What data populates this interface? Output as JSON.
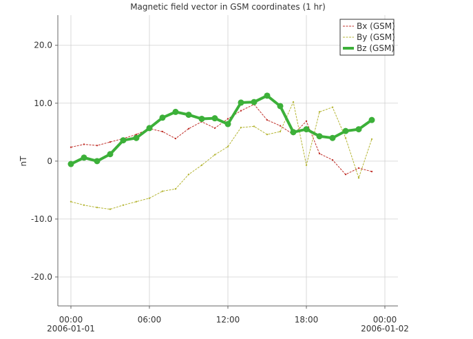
{
  "chart_data": {
    "type": "line",
    "title": "Magnetic field vector in GSM coordinates (1 hr)",
    "y_label": "nT",
    "x": [
      0,
      1,
      2,
      3,
      4,
      5,
      6,
      7,
      8,
      9,
      10,
      11,
      12,
      13,
      14,
      15,
      16,
      17,
      18,
      19,
      20,
      21,
      22,
      23
    ],
    "xlim": [
      -1,
      25
    ],
    "xticks": [
      {
        "value": 0,
        "label": "00:00",
        "sublabel": "2006-01-01"
      },
      {
        "value": 6,
        "label": "06:00"
      },
      {
        "value": 12,
        "label": "12:00"
      },
      {
        "value": 18,
        "label": "18:00"
      },
      {
        "value": 24,
        "label": "00:00",
        "sublabel": "2006-01-02"
      }
    ],
    "ylim": [
      -25,
      25.2
    ],
    "yticks": [
      {
        "value": -20,
        "label": "-20.0"
      },
      {
        "value": -10,
        "label": "-10.0"
      },
      0,
      {
        "value": 10,
        "label": "10.0"
      },
      {
        "value": 20,
        "label": "20.0"
      }
    ],
    "grid": true,
    "legend": "top-right",
    "series": [
      {
        "name": "Bx (GSM)",
        "color": "#c0302a",
        "style": "thin",
        "values": [
          2.4,
          2.9,
          2.7,
          3.3,
          3.9,
          4.6,
          5.6,
          5.1,
          3.9,
          5.6,
          6.8,
          5.7,
          7.3,
          8.7,
          9.8,
          7.1,
          6.1,
          4.6,
          6.9,
          1.3,
          0.2,
          -2.3,
          -1.2,
          -1.8
        ]
      },
      {
        "name": "By (GSM)",
        "color": "#b5b534",
        "style": "thin",
        "values": [
          -7.0,
          -7.6,
          -8.0,
          -8.3,
          -7.6,
          -7.0,
          -6.4,
          -5.2,
          -4.8,
          -2.3,
          -0.7,
          1.1,
          2.5,
          5.8,
          6.0,
          4.6,
          5.1,
          10.2,
          -0.7,
          8.5,
          9.3,
          4.0,
          -2.9,
          3.8
        ]
      },
      {
        "name": "Bz (GSM)",
        "color": "#3cb039",
        "style": "thick",
        "values": [
          -0.5,
          0.6,
          0.0,
          1.2,
          3.6,
          4.0,
          5.7,
          7.5,
          8.5,
          8.0,
          7.3,
          7.4,
          6.4,
          10.1,
          10.2,
          11.3,
          9.5,
          5.0,
          5.5,
          4.3,
          4.0,
          5.2,
          5.5,
          7.1
        ]
      }
    ]
  }
}
